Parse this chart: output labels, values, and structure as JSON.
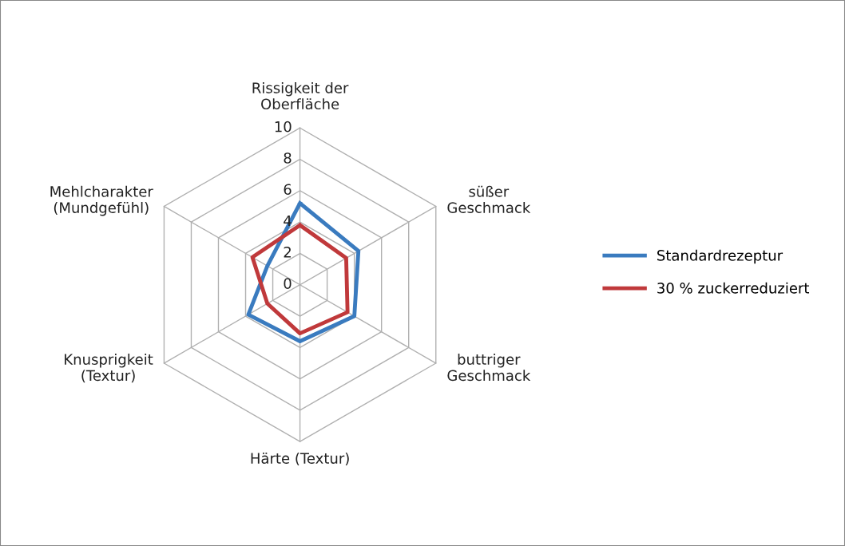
{
  "chart_data": {
    "type": "radar",
    "categories": [
      "Rissigkeit der\nOberfläche",
      "süßer\nGeschmack",
      "buttriger\nGeschmack",
      "Härte (Textur)",
      "Knusprigkeit\n(Textur)",
      "Mehlcharakter\n(Mundgefühl)"
    ],
    "series": [
      {
        "name": "Standardrezeptur",
        "color": "#3a7bbf",
        "values": [
          5.2,
          4.3,
          4.0,
          3.6,
          3.8,
          2.4
        ]
      },
      {
        "name": "30 % zuckerreduziert",
        "color": "#c0393b",
        "values": [
          3.8,
          3.4,
          3.5,
          3.1,
          2.4,
          3.5
        ]
      }
    ],
    "ylim": [
      0,
      10
    ],
    "yticks": [
      0,
      2,
      4,
      6,
      8,
      10
    ],
    "grid": true,
    "legend": "right",
    "marker": "none",
    "line_style": "solid"
  }
}
